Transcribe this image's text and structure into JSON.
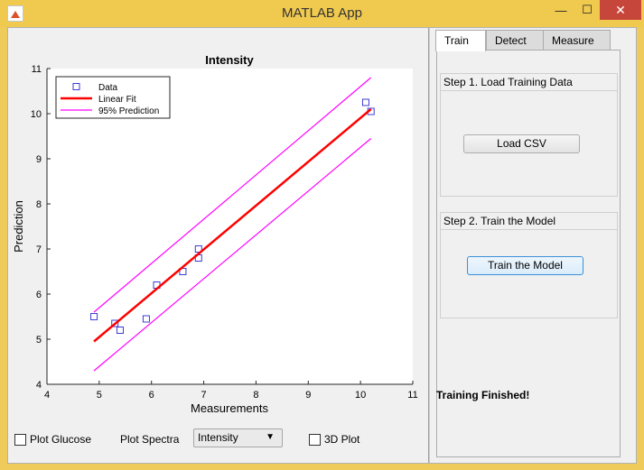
{
  "window": {
    "title": "MATLAB App",
    "minimize": "—",
    "maximize": "☐",
    "close": "✕"
  },
  "tabs": [
    {
      "label": "Train",
      "active": true
    },
    {
      "label": "Detect",
      "active": false
    },
    {
      "label": "Measure",
      "active": false
    }
  ],
  "train": {
    "step1_title": "Step 1. Load Training Data",
    "load_button": "Load CSV",
    "step2_title": "Step 2. Train the Model",
    "train_button": "Train the Model",
    "status": "Training Finished!"
  },
  "controls": {
    "plot_glucose": {
      "label": "Plot Glucose",
      "checked": false
    },
    "plot_spectra_label": "Plot Spectra",
    "plot_spectra_value": "Intensity",
    "plot_3d": {
      "label": "3D Plot",
      "checked": false
    }
  },
  "chart_data": {
    "type": "scatter",
    "title": "Intensity",
    "xlabel": "Measurements",
    "ylabel": "Prediction",
    "xlim": [
      4,
      11
    ],
    "ylim": [
      4,
      11
    ],
    "xticks": [
      4,
      5,
      6,
      7,
      8,
      9,
      10,
      11
    ],
    "yticks": [
      4,
      5,
      6,
      7,
      8,
      9,
      10,
      11
    ],
    "legend": [
      "Data",
      "Linear Fit",
      "95% Prediction"
    ],
    "legend_position": "top-left",
    "grid": false,
    "colors": {
      "data": "#3b3bd6",
      "fit": "#ff0000",
      "prediction": "#ff00ff"
    },
    "series": [
      {
        "name": "Data",
        "type": "scatter",
        "x": [
          4.9,
          5.3,
          5.4,
          5.9,
          6.1,
          6.6,
          6.9,
          6.9,
          10.1,
          10.2
        ],
        "y": [
          5.5,
          5.35,
          5.2,
          5.45,
          6.2,
          6.5,
          7.0,
          6.8,
          10.25,
          10.05
        ]
      },
      {
        "name": "Linear Fit",
        "type": "line",
        "x": [
          4.9,
          10.2
        ],
        "y": [
          4.95,
          10.1
        ]
      },
      {
        "name": "95% Prediction",
        "type": "line",
        "x": [
          4.9,
          10.2
        ],
        "y": [
          5.6,
          10.8
        ]
      },
      {
        "name": "95% Prediction",
        "type": "line",
        "x": [
          4.9,
          10.2
        ],
        "y": [
          4.3,
          9.45
        ]
      }
    ]
  }
}
